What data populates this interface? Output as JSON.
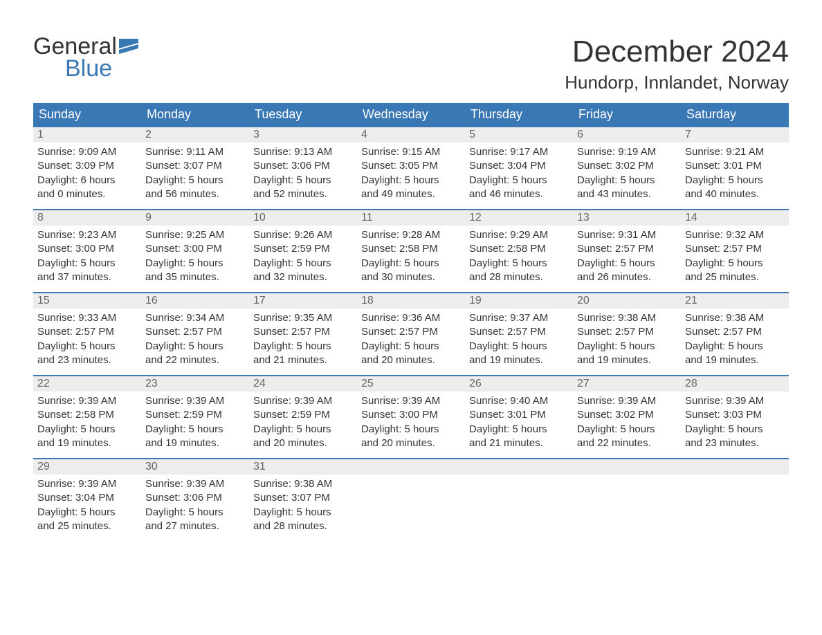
{
  "brand": {
    "t1": "General",
    "t2": "Blue"
  },
  "title": {
    "month": "December 2024",
    "location": "Hundorp, Innlandet, Norway"
  },
  "colors": {
    "header_bg": "#3a77b5",
    "header_text": "#ffffff",
    "daynum_bg": "#ededed",
    "daynum_text": "#666666",
    "body_text": "#333333",
    "logo_blue": "#3a77b5",
    "page_bg": "#ffffff",
    "divider": "#3a77b5"
  },
  "weekdays": [
    "Sunday",
    "Monday",
    "Tuesday",
    "Wednesday",
    "Thursday",
    "Friday",
    "Saturday"
  ],
  "weeks": [
    [
      {
        "n": "1",
        "sr": "Sunrise: 9:09 AM",
        "ss": "Sunset: 3:09 PM",
        "d1": "Daylight: 6 hours",
        "d2": "and 0 minutes."
      },
      {
        "n": "2",
        "sr": "Sunrise: 9:11 AM",
        "ss": "Sunset: 3:07 PM",
        "d1": "Daylight: 5 hours",
        "d2": "and 56 minutes."
      },
      {
        "n": "3",
        "sr": "Sunrise: 9:13 AM",
        "ss": "Sunset: 3:06 PM",
        "d1": "Daylight: 5 hours",
        "d2": "and 52 minutes."
      },
      {
        "n": "4",
        "sr": "Sunrise: 9:15 AM",
        "ss": "Sunset: 3:05 PM",
        "d1": "Daylight: 5 hours",
        "d2": "and 49 minutes."
      },
      {
        "n": "5",
        "sr": "Sunrise: 9:17 AM",
        "ss": "Sunset: 3:04 PM",
        "d1": "Daylight: 5 hours",
        "d2": "and 46 minutes."
      },
      {
        "n": "6",
        "sr": "Sunrise: 9:19 AM",
        "ss": "Sunset: 3:02 PM",
        "d1": "Daylight: 5 hours",
        "d2": "and 43 minutes."
      },
      {
        "n": "7",
        "sr": "Sunrise: 9:21 AM",
        "ss": "Sunset: 3:01 PM",
        "d1": "Daylight: 5 hours",
        "d2": "and 40 minutes."
      }
    ],
    [
      {
        "n": "8",
        "sr": "Sunrise: 9:23 AM",
        "ss": "Sunset: 3:00 PM",
        "d1": "Daylight: 5 hours",
        "d2": "and 37 minutes."
      },
      {
        "n": "9",
        "sr": "Sunrise: 9:25 AM",
        "ss": "Sunset: 3:00 PM",
        "d1": "Daylight: 5 hours",
        "d2": "and 35 minutes."
      },
      {
        "n": "10",
        "sr": "Sunrise: 9:26 AM",
        "ss": "Sunset: 2:59 PM",
        "d1": "Daylight: 5 hours",
        "d2": "and 32 minutes."
      },
      {
        "n": "11",
        "sr": "Sunrise: 9:28 AM",
        "ss": "Sunset: 2:58 PM",
        "d1": "Daylight: 5 hours",
        "d2": "and 30 minutes."
      },
      {
        "n": "12",
        "sr": "Sunrise: 9:29 AM",
        "ss": "Sunset: 2:58 PM",
        "d1": "Daylight: 5 hours",
        "d2": "and 28 minutes."
      },
      {
        "n": "13",
        "sr": "Sunrise: 9:31 AM",
        "ss": "Sunset: 2:57 PM",
        "d1": "Daylight: 5 hours",
        "d2": "and 26 minutes."
      },
      {
        "n": "14",
        "sr": "Sunrise: 9:32 AM",
        "ss": "Sunset: 2:57 PM",
        "d1": "Daylight: 5 hours",
        "d2": "and 25 minutes."
      }
    ],
    [
      {
        "n": "15",
        "sr": "Sunrise: 9:33 AM",
        "ss": "Sunset: 2:57 PM",
        "d1": "Daylight: 5 hours",
        "d2": "and 23 minutes."
      },
      {
        "n": "16",
        "sr": "Sunrise: 9:34 AM",
        "ss": "Sunset: 2:57 PM",
        "d1": "Daylight: 5 hours",
        "d2": "and 22 minutes."
      },
      {
        "n": "17",
        "sr": "Sunrise: 9:35 AM",
        "ss": "Sunset: 2:57 PM",
        "d1": "Daylight: 5 hours",
        "d2": "and 21 minutes."
      },
      {
        "n": "18",
        "sr": "Sunrise: 9:36 AM",
        "ss": "Sunset: 2:57 PM",
        "d1": "Daylight: 5 hours",
        "d2": "and 20 minutes."
      },
      {
        "n": "19",
        "sr": "Sunrise: 9:37 AM",
        "ss": "Sunset: 2:57 PM",
        "d1": "Daylight: 5 hours",
        "d2": "and 19 minutes."
      },
      {
        "n": "20",
        "sr": "Sunrise: 9:38 AM",
        "ss": "Sunset: 2:57 PM",
        "d1": "Daylight: 5 hours",
        "d2": "and 19 minutes."
      },
      {
        "n": "21",
        "sr": "Sunrise: 9:38 AM",
        "ss": "Sunset: 2:57 PM",
        "d1": "Daylight: 5 hours",
        "d2": "and 19 minutes."
      }
    ],
    [
      {
        "n": "22",
        "sr": "Sunrise: 9:39 AM",
        "ss": "Sunset: 2:58 PM",
        "d1": "Daylight: 5 hours",
        "d2": "and 19 minutes."
      },
      {
        "n": "23",
        "sr": "Sunrise: 9:39 AM",
        "ss": "Sunset: 2:59 PM",
        "d1": "Daylight: 5 hours",
        "d2": "and 19 minutes."
      },
      {
        "n": "24",
        "sr": "Sunrise: 9:39 AM",
        "ss": "Sunset: 2:59 PM",
        "d1": "Daylight: 5 hours",
        "d2": "and 20 minutes."
      },
      {
        "n": "25",
        "sr": "Sunrise: 9:39 AM",
        "ss": "Sunset: 3:00 PM",
        "d1": "Daylight: 5 hours",
        "d2": "and 20 minutes."
      },
      {
        "n": "26",
        "sr": "Sunrise: 9:40 AM",
        "ss": "Sunset: 3:01 PM",
        "d1": "Daylight: 5 hours",
        "d2": "and 21 minutes."
      },
      {
        "n": "27",
        "sr": "Sunrise: 9:39 AM",
        "ss": "Sunset: 3:02 PM",
        "d1": "Daylight: 5 hours",
        "d2": "and 22 minutes."
      },
      {
        "n": "28",
        "sr": "Sunrise: 9:39 AM",
        "ss": "Sunset: 3:03 PM",
        "d1": "Daylight: 5 hours",
        "d2": "and 23 minutes."
      }
    ],
    [
      {
        "n": "29",
        "sr": "Sunrise: 9:39 AM",
        "ss": "Sunset: 3:04 PM",
        "d1": "Daylight: 5 hours",
        "d2": "and 25 minutes."
      },
      {
        "n": "30",
        "sr": "Sunrise: 9:39 AM",
        "ss": "Sunset: 3:06 PM",
        "d1": "Daylight: 5 hours",
        "d2": "and 27 minutes."
      },
      {
        "n": "31",
        "sr": "Sunrise: 9:38 AM",
        "ss": "Sunset: 3:07 PM",
        "d1": "Daylight: 5 hours",
        "d2": "and 28 minutes."
      },
      {
        "empty": true
      },
      {
        "empty": true
      },
      {
        "empty": true
      },
      {
        "empty": true
      }
    ]
  ]
}
